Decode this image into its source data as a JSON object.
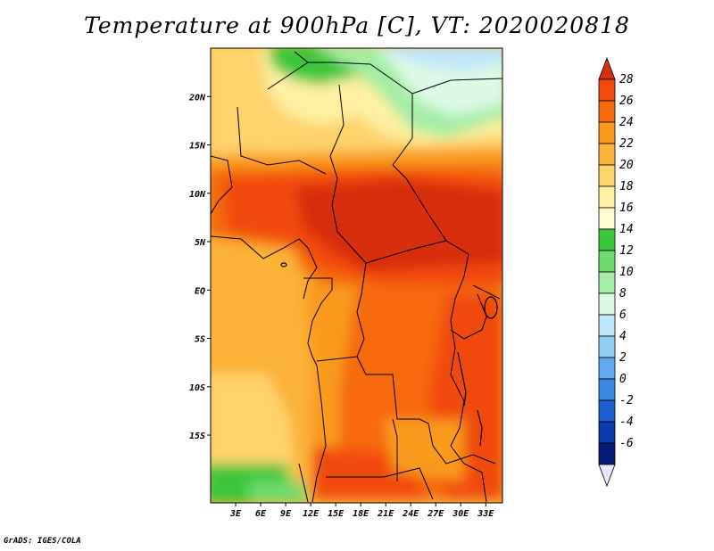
{
  "title": "Temperature at 900hPa [C], VT: 2020020818",
  "footer": "GrADS: IGES/COLA",
  "map": {
    "lon_range": [
      0,
      35
    ],
    "lat_range": [
      -22,
      25
    ],
    "lat_labels": [
      "20N",
      "15N",
      "10N",
      "5N",
      "EQ",
      "5S",
      "10S",
      "15S"
    ],
    "lat_values": [
      20,
      15,
      10,
      5,
      0,
      -5,
      -10,
      -15
    ],
    "lon_labels": [
      "3E",
      "6E",
      "9E",
      "12E",
      "15E",
      "18E",
      "21E",
      "24E",
      "27E",
      "30E",
      "33E"
    ],
    "lon_values": [
      3,
      6,
      9,
      12,
      15,
      18,
      21,
      24,
      27,
      30,
      33
    ]
  },
  "colorbar": {
    "labels": [
      "28",
      "26",
      "24",
      "22",
      "20",
      "18",
      "16",
      "14",
      "12",
      "10",
      "8",
      "6",
      "4",
      "2",
      "0",
      "-2",
      "-4",
      "-6"
    ],
    "colors": [
      "#d72d10",
      "#f04a0c",
      "#f76b0f",
      "#f99a1e",
      "#fbb439",
      "#fdd36b",
      "#fff0a4",
      "#fffbcc",
      "#3cc63c",
      "#6fdb6f",
      "#a3eea3",
      "#dcfbe6",
      "#bfe7fb",
      "#92cdf6",
      "#5faaee",
      "#3a86e3",
      "#1c5fcc",
      "#0a3aab",
      "#061a78",
      "#e8e8fc"
    ]
  }
}
